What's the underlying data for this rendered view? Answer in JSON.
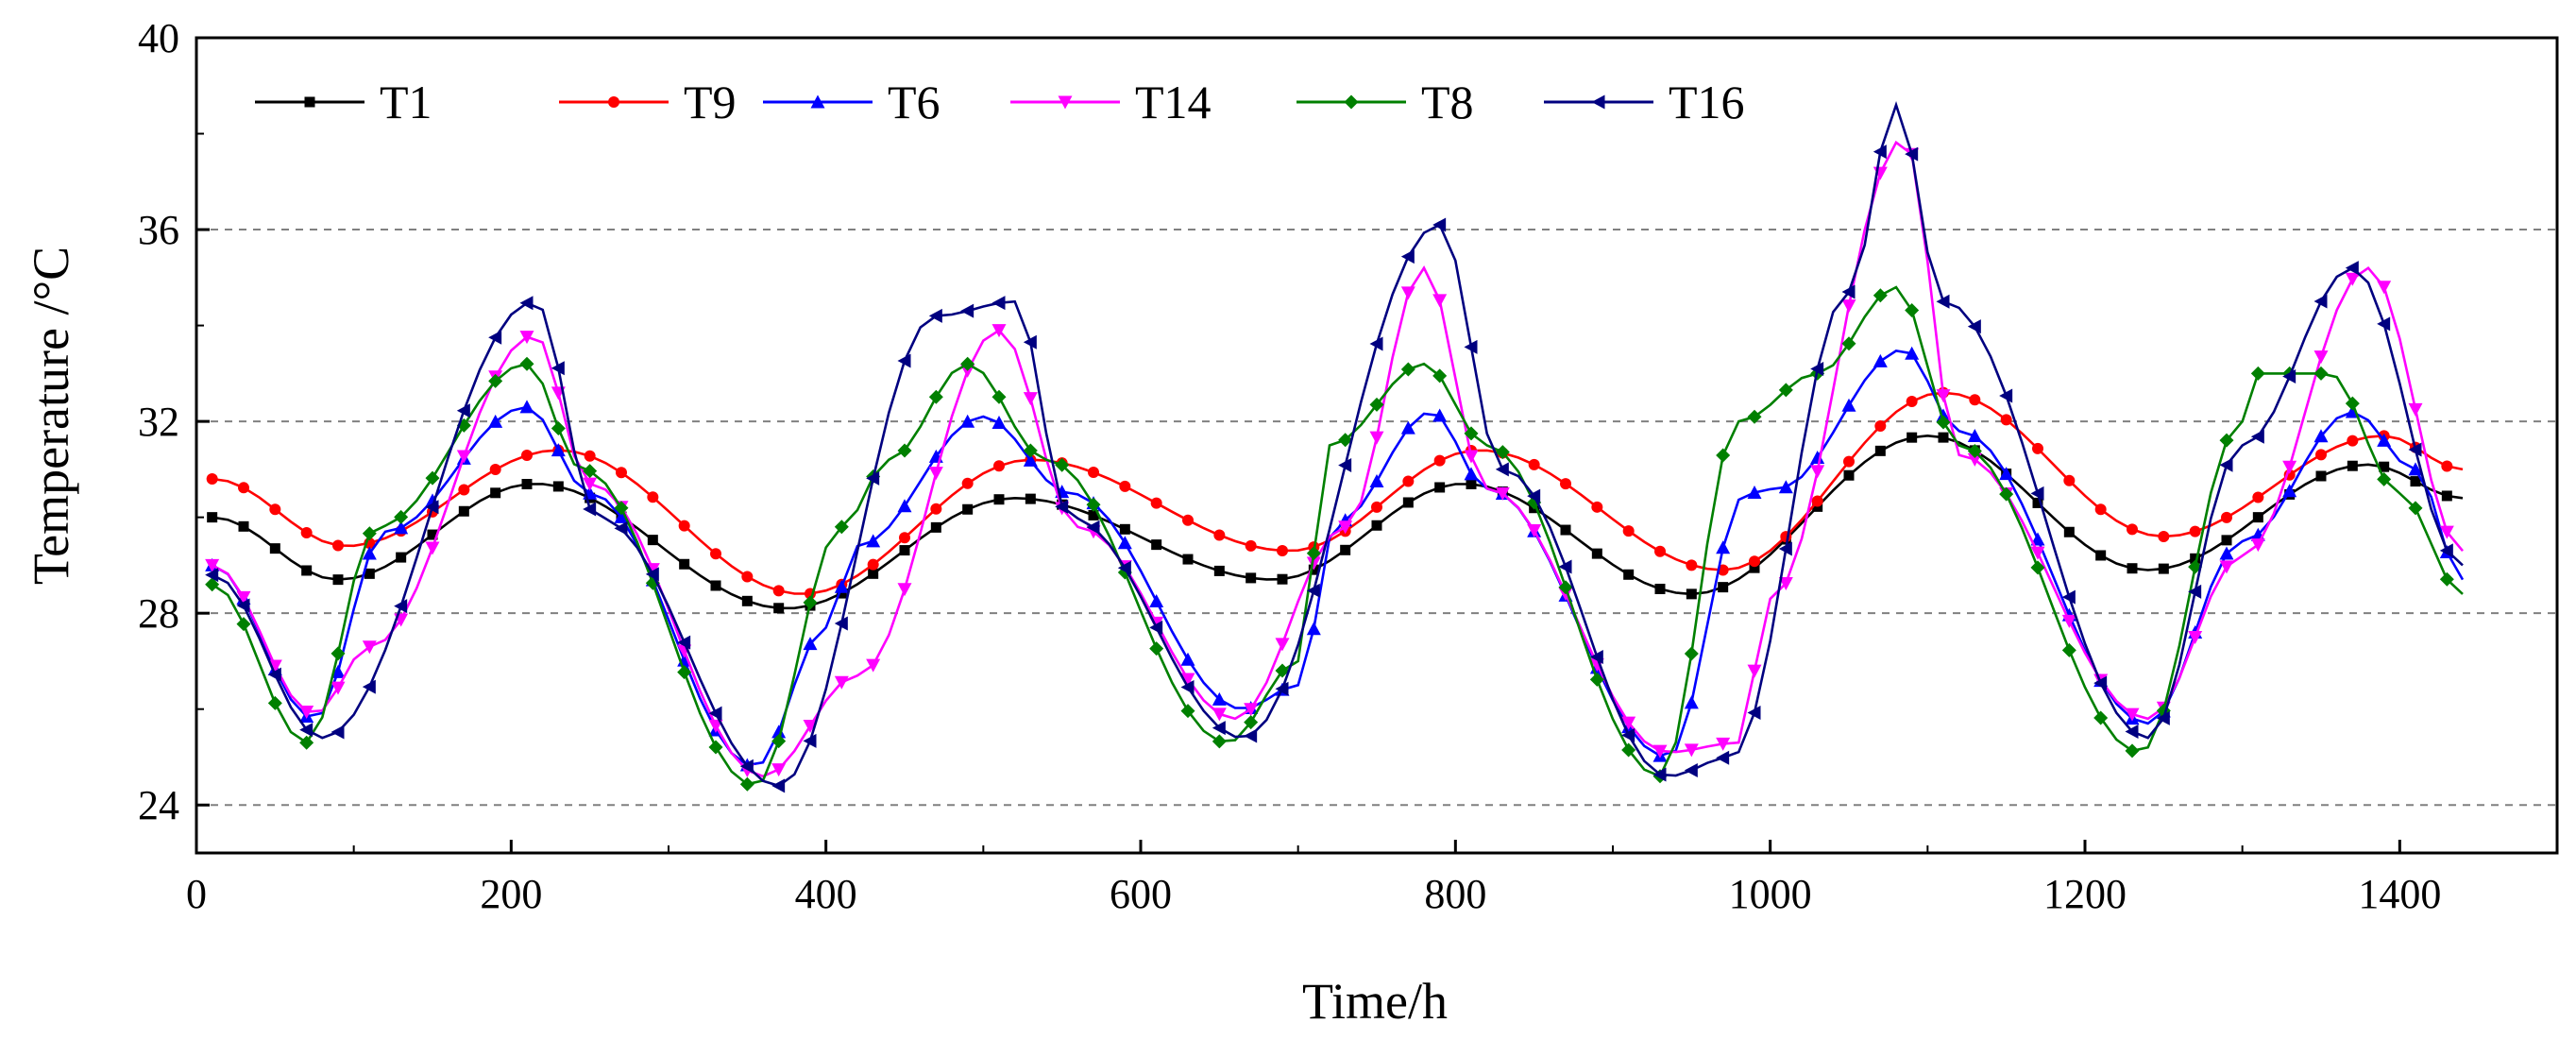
{
  "chart_data": {
    "type": "line",
    "title": "",
    "xlabel": "Time/h",
    "ylabel": "Temperature /°C",
    "xlim": [
      0,
      1500
    ],
    "ylim": [
      23,
      40
    ],
    "xticks": [
      0,
      200,
      400,
      600,
      800,
      1000,
      1200,
      1400
    ],
    "yticks": [
      24,
      28,
      32,
      36,
      40
    ],
    "ygrid": [
      24,
      28,
      32,
      36
    ],
    "legend_position": "top-left",
    "series": [
      {
        "name": "T1",
        "color": "#000000",
        "marker": "square",
        "keypoints": [
          [
            10,
            30.0
          ],
          [
            90,
            28.7
          ],
          [
            215,
            30.7
          ],
          [
            375,
            28.1
          ],
          [
            520,
            30.4
          ],
          [
            685,
            28.7
          ],
          [
            805,
            30.7
          ],
          [
            950,
            28.4
          ],
          [
            1100,
            31.7
          ],
          [
            1240,
            28.9
          ],
          [
            1380,
            31.1
          ],
          [
            1440,
            30.4
          ]
        ]
      },
      {
        "name": "T9",
        "color": "#ff0000",
        "marker": "circle",
        "keypoints": [
          [
            10,
            30.8
          ],
          [
            95,
            29.4
          ],
          [
            230,
            31.4
          ],
          [
            385,
            28.4
          ],
          [
            530,
            31.2
          ],
          [
            695,
            29.3
          ],
          [
            815,
            31.4
          ],
          [
            970,
            28.9
          ],
          [
            1110,
            32.6
          ],
          [
            1250,
            29.6
          ],
          [
            1390,
            31.7
          ],
          [
            1440,
            31.0
          ]
        ]
      },
      {
        "name": "T6",
        "color": "#0000ff",
        "marker": "triangle-up",
        "keypoints": [
          [
            10,
            29.0
          ],
          [
            75,
            25.8
          ],
          [
            120,
            29.7
          ],
          [
            210,
            32.3
          ],
          [
            250,
            30.5
          ],
          [
            355,
            24.8
          ],
          [
            400,
            27.7
          ],
          [
            420,
            29.4
          ],
          [
            500,
            32.1
          ],
          [
            555,
            30.5
          ],
          [
            665,
            26.0
          ],
          [
            700,
            26.5
          ],
          [
            725,
            29.9
          ],
          [
            785,
            32.2
          ],
          [
            820,
            30.6
          ],
          [
            935,
            25.0
          ],
          [
            985,
            30.5
          ],
          [
            1005,
            30.6
          ],
          [
            1085,
            33.5
          ],
          [
            1120,
            31.8
          ],
          [
            1240,
            25.7
          ],
          [
            1300,
            29.5
          ],
          [
            1370,
            32.2
          ],
          [
            1410,
            31.0
          ],
          [
            1440,
            28.7
          ]
        ]
      },
      {
        "name": "T14",
        "color": "#ff00ff",
        "marker": "triangle-down",
        "keypoints": [
          [
            10,
            29.0
          ],
          [
            75,
            25.9
          ],
          [
            110,
            27.3
          ],
          [
            215,
            33.8
          ],
          [
            250,
            30.7
          ],
          [
            360,
            24.6
          ],
          [
            420,
            26.7
          ],
          [
            510,
            33.9
          ],
          [
            560,
            29.8
          ],
          [
            660,
            25.8
          ],
          [
            730,
            29.8
          ],
          [
            780,
            35.2
          ],
          [
            820,
            30.6
          ],
          [
            935,
            25.1
          ],
          [
            980,
            25.3
          ],
          [
            1000,
            28.3
          ],
          [
            1085,
            37.9
          ],
          [
            1120,
            31.3
          ],
          [
            1240,
            25.8
          ],
          [
            1300,
            29.2
          ],
          [
            1380,
            35.2
          ],
          [
            1440,
            29.3
          ]
        ]
      },
      {
        "name": "T8",
        "color": "#008000",
        "marker": "diamond",
        "keypoints": [
          [
            10,
            28.6
          ],
          [
            70,
            25.3
          ],
          [
            115,
            29.8
          ],
          [
            210,
            33.2
          ],
          [
            245,
            31.0
          ],
          [
            355,
            24.4
          ],
          [
            410,
            29.8
          ],
          [
            440,
            31.2
          ],
          [
            490,
            33.2
          ],
          [
            540,
            31.2
          ],
          [
            655,
            25.3
          ],
          [
            700,
            27.0
          ],
          [
            720,
            31.5
          ],
          [
            780,
            33.2
          ],
          [
            820,
            31.5
          ],
          [
            930,
            24.6
          ],
          [
            980,
            32.0
          ],
          [
            1030,
            33.0
          ],
          [
            1080,
            34.8
          ],
          [
            1120,
            31.5
          ],
          [
            1235,
            25.1
          ],
          [
            1300,
            32.0
          ],
          [
            1310,
            33.0
          ],
          [
            1355,
            33.0
          ],
          [
            1400,
            30.5
          ],
          [
            1440,
            28.4
          ]
        ]
      },
      {
        "name": "T16",
        "color": "#000080",
        "marker": "triangle-left",
        "keypoints": [
          [
            10,
            28.8
          ],
          [
            80,
            25.4
          ],
          [
            215,
            34.5
          ],
          [
            255,
            30.0
          ],
          [
            370,
            24.4
          ],
          [
            470,
            34.2
          ],
          [
            520,
            34.5
          ],
          [
            555,
            30.0
          ],
          [
            665,
            25.4
          ],
          [
            790,
            36.1
          ],
          [
            830,
            31.0
          ],
          [
            935,
            24.6
          ],
          [
            975,
            25.0
          ],
          [
            1050,
            34.7
          ],
          [
            1080,
            38.6
          ],
          [
            1110,
            34.5
          ],
          [
            1240,
            25.4
          ],
          [
            1300,
            31.5
          ],
          [
            1370,
            35.2
          ],
          [
            1440,
            29.0
          ]
        ]
      }
    ]
  }
}
